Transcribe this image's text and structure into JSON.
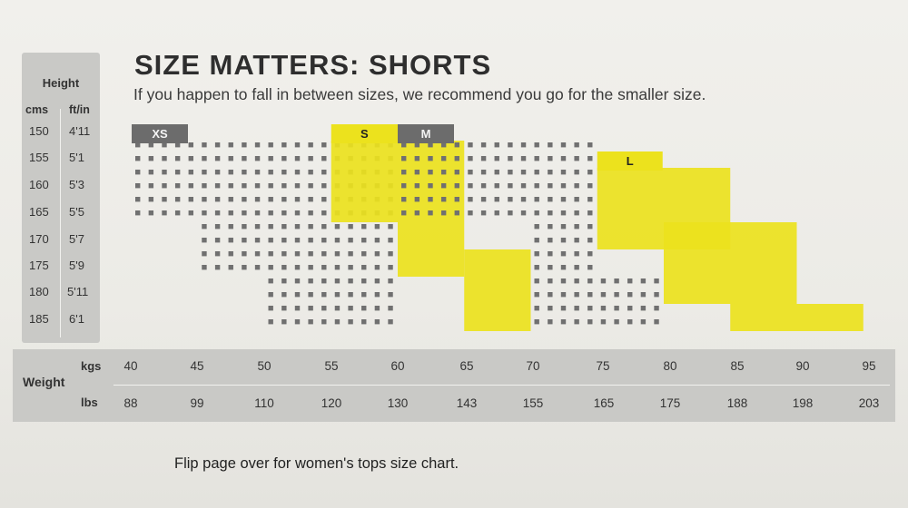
{
  "title": "SIZE MATTERS: SHORTS",
  "subtitle": "If you happen to fall in between sizes, we recommend you go for the smaller size.",
  "footer": "Flip page over for women's tops size chart.",
  "height_axis": {
    "title": "Height",
    "cms_label": "cms",
    "ftin_label": "ft/in",
    "rows": [
      {
        "cm": "150",
        "ft": "4'11"
      },
      {
        "cm": "155",
        "ft": "5'1"
      },
      {
        "cm": "160",
        "ft": "5'3"
      },
      {
        "cm": "165",
        "ft": "5'5"
      },
      {
        "cm": "170",
        "ft": "5'7"
      },
      {
        "cm": "175",
        "ft": "5'9"
      },
      {
        "cm": "180",
        "ft": "5'11"
      },
      {
        "cm": "185",
        "ft": "6'1"
      }
    ]
  },
  "weight_axis": {
    "title": "Weight",
    "kgs_label": "kgs",
    "lbs_label": "lbs",
    "kgs": [
      "40",
      "45",
      "50",
      "55",
      "60",
      "65",
      "70",
      "75",
      "80",
      "85",
      "90",
      "95"
    ],
    "lbs": [
      "88",
      "99",
      "110",
      "120",
      "130",
      "143",
      "155",
      "165",
      "175",
      "188",
      "198",
      "203"
    ]
  },
  "colors": {
    "gray": "#707070",
    "yellow": "#ece21d",
    "size_label_dark": "#6c6c6c"
  },
  "chart_data": {
    "type": "heatmap",
    "title": "SIZE MATTERS: SHORTS",
    "xlabel": "Weight",
    "ylabel": "Height",
    "x_kg": [
      40,
      45,
      50,
      55,
      60,
      65,
      70,
      75,
      80,
      85,
      90,
      95
    ],
    "y_cm": [
      150,
      155,
      160,
      165,
      170,
      175,
      180,
      185
    ],
    "sizes": [
      {
        "name": "XS",
        "label_color": "gray",
        "regions": [
          {
            "kg": [
              40,
              45
            ],
            "cm": [
              150,
              165
            ]
          },
          {
            "kg": [
              45,
              60
            ],
            "cm": [
              150,
              175
            ]
          },
          {
            "kg": [
              50,
              60
            ],
            "cm": [
              170,
              185
            ]
          }
        ]
      },
      {
        "name": "S",
        "label_color": "yellow",
        "regions": [
          {
            "kg": [
              55,
              60
            ],
            "cm": [
              150,
              165
            ]
          },
          {
            "kg": [
              60,
              65
            ],
            "cm": [
              150,
              175
            ]
          },
          {
            "kg": [
              65,
              70
            ],
            "cm": [
              170,
              185
            ]
          }
        ]
      },
      {
        "name": "M",
        "label_color": "gray",
        "regions": [
          {
            "kg": [
              60,
              70
            ],
            "cm": [
              150,
              165
            ]
          },
          {
            "kg": [
              70,
              75
            ],
            "cm": [
              150,
              185
            ]
          },
          {
            "kg": [
              75,
              80
            ],
            "cm": [
              175,
              185
            ]
          }
        ]
      },
      {
        "name": "L",
        "label_color": "yellow",
        "regions": [
          {
            "kg": [
              75,
              85
            ],
            "cm": [
              155,
              170
            ]
          },
          {
            "kg": [
              80,
              90
            ],
            "cm": [
              165,
              180
            ]
          },
          {
            "kg": [
              85,
              95
            ],
            "cm": [
              180,
              185
            ]
          }
        ]
      }
    ]
  }
}
